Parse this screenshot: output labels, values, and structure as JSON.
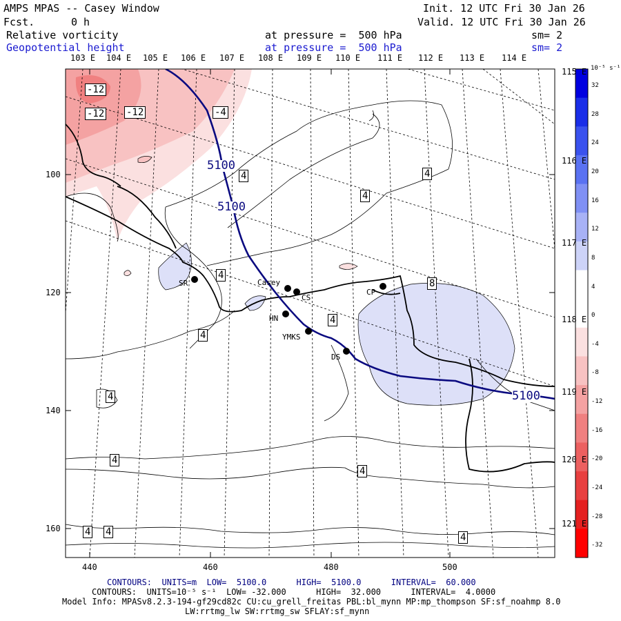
{
  "header": {
    "title": "AMPS MPAS -- Casey Window",
    "fcst_label": "Fcst.",
    "fcst_value": "0 h",
    "init": "Init. 12 UTC Fri 30 Jan 26",
    "valid": "Valid. 12 UTC Fri 30 Jan 26"
  },
  "fields": [
    {
      "name": "Relative vorticity",
      "pressure": "at pressure =  500 hPa",
      "sm": "sm= 2",
      "color": "#000000"
    },
    {
      "name": "Geopotential height",
      "pressure": "at pressure =  500 hPa",
      "sm": "sm= 2",
      "color": "#1a1ad0"
    }
  ],
  "lon_labels_top": [
    "103 E",
    "104 E",
    "105 E",
    "106 E",
    "107 E",
    "108 E",
    "109 E",
    "110 E",
    "111 E",
    "112 E",
    "113 E",
    "114 E"
  ],
  "lon_labels_right": [
    "115 E",
    "116 E",
    "117 E",
    "118 E",
    "119 E",
    "120 E",
    "121 E"
  ],
  "x_ticks": [
    "440",
    "460",
    "480",
    "500"
  ],
  "y_ticks": [
    "100",
    "120",
    "140",
    "160"
  ],
  "colorbar": {
    "unit": "10⁻⁵ s⁻¹",
    "labels": [
      "32",
      "28",
      "24",
      "20",
      "16",
      "12",
      "8",
      "4",
      "0",
      "-4",
      "-8",
      "-12",
      "-16",
      "-20",
      "-24",
      "-28",
      "-32"
    ],
    "colors": [
      "#0000e0",
      "#1a2ee8",
      "#3a52ee",
      "#5a72f2",
      "#8090f4",
      "#a8b2f6",
      "#cdd3f8",
      "#ffffff",
      "#ffffff",
      "#fbe0e0",
      "#f8c2c2",
      "#f4a2a2",
      "#f08080",
      "#ec6060",
      "#e84040",
      "#e42020",
      "#ff0000"
    ]
  },
  "stations": [
    {
      "name": "SR"
    },
    {
      "name": "Casey"
    },
    {
      "name": "CS"
    },
    {
      "name": "HN"
    },
    {
      "name": "YMKS"
    },
    {
      "name": "DS"
    },
    {
      "name": "CP"
    }
  ],
  "contour_labels": {
    "vort_neg": [
      "-12",
      "-12",
      "-12",
      "-4"
    ],
    "vort_pos": [
      "4",
      "4",
      "4",
      "4",
      "4",
      "4",
      "8",
      "4",
      "4",
      "4",
      "4",
      "4",
      "4"
    ],
    "height": [
      "5100",
      "5100",
      "5100"
    ]
  },
  "footer": {
    "line1": "CONTOURS:  UNITS=m  LOW=  5100.0      HIGH=  5100.0      INTERVAL=  60.000",
    "line2": "CONTOURS:  UNITS=10⁻⁵ s⁻¹  LOW= -32.000      HIGH=  32.000      INTERVAL=  4.0000",
    "line3": "Model Info: MPASv8.2.3-194-gf29cd82c CU:cu_grell_freitas PBL:bl_mynn MP:mp_thompson SF:sf_noahmp 8.0",
    "line4": "LW:rrtmg_lw SW:rrtmg_sw SFLAY:sf_mynn"
  }
}
